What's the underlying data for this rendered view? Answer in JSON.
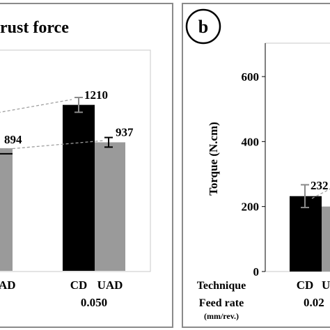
{
  "chart_data": [
    {
      "type": "bar",
      "title": "rust force",
      "categories": [
        "CD",
        "UAD"
      ],
      "visible_feed_groups": [
        {
          "feed_rate": "0.050",
          "series": [
            {
              "name": "CD",
              "value": 1210,
              "value_label": "1210",
              "error": 60
            },
            {
              "name": "UAD",
              "value": 937,
              "value_label": "937",
              "error": 35
            }
          ]
        }
      ],
      "partial_group": {
        "uad_value_label": "894",
        "uad_partial_label": "AD"
      },
      "trend_lines": "dashed gray lines connecting CD and UAD tops across feed rates",
      "colors": {
        "CD": "#000000",
        "UAD": "#9a9a9a",
        "error_bar_CD": "#8a8a8a",
        "error_bar_UAD": "#000000"
      }
    },
    {
      "type": "bar",
      "panel_label": "b",
      "ylabel": "Torque (N.cm)",
      "yticks": [
        "0",
        "200",
        "400",
        "600"
      ],
      "ylim": [
        0,
        640
      ],
      "x_row_labels": {
        "technique": "Technique",
        "feed_rate": "Feed rate",
        "feed_rate_unit": "(mm/rev.)"
      },
      "visible_feed_groups": [
        {
          "feed_rate_partial": "0.02",
          "series": [
            {
              "name": "CD",
              "value": 232,
              "value_label": "232",
              "error": 35
            },
            {
              "name": "UAD",
              "value": 200,
              "value_label_partial": "U"
            }
          ]
        }
      ],
      "colors": {
        "CD": "#000000",
        "UAD": "#9a9a9a",
        "error_bar": "#8a8a8a"
      }
    }
  ]
}
